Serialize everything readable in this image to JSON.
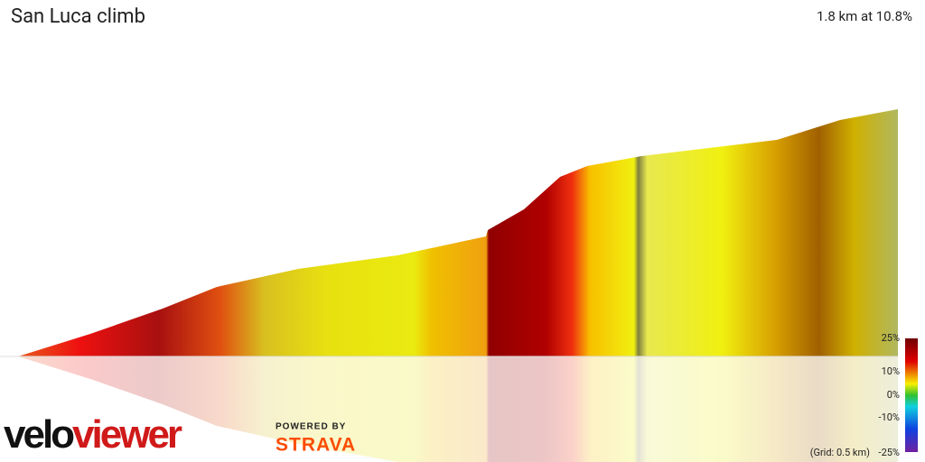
{
  "header": {
    "title": "San Luca climb",
    "stats": "1.8 km at 10.8%"
  },
  "legend": {
    "ticks": [
      "25%",
      "10%",
      "0%",
      "-10%",
      "-25%"
    ],
    "grid_note": "(Grid: 0.5 km)"
  },
  "branding": {
    "logo_part1": "velo",
    "logo_part2": "viewer",
    "powered_by": "POWERED BY",
    "strava": "STRAVA"
  }
}
